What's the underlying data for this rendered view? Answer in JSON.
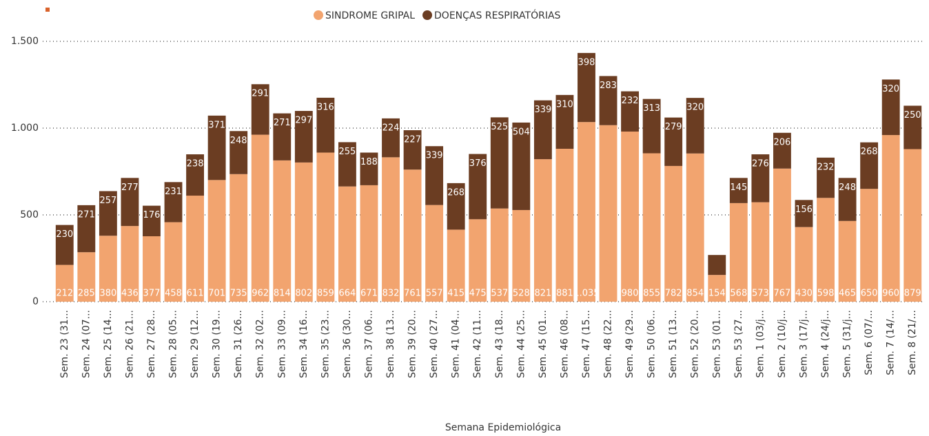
{
  "chart_data": {
    "type": "stacked-bar",
    "x_label": "Semana Epidemiológica",
    "categories": [
      "Sem. 23 (31...",
      "Sem. 24 (07...",
      "Sem. 25 (14...",
      "Sem. 26 (21...",
      "Sem. 27 (28...",
      "Sem. 28 (05...",
      "Sem. 29 (12...",
      "Sem. 30 (19...",
      "Sem. 31 (26...",
      "Sem. 32 (02...",
      "Sem. 33 (09...",
      "Sem. 34 (16...",
      "Sem. 35 (23...",
      "Sem. 36 (30...",
      "Sem. 37 (06...",
      "Sem. 38 (13...",
      "Sem. 39 (20...",
      "Sem. 40 (27...",
      "Sem. 41 (04...",
      "Sem. 42 (11...",
      "Sem. 43 (18...",
      "Sem. 44 (25...",
      "Sem. 45 (01...",
      "Sem. 46 (08...",
      "Sem. 47 (15...",
      "Sem. 48 (22...",
      "Sem. 49 (29...",
      "Sem. 50 (06...",
      "Sem. 51 (13...",
      "Sem. 52 (20...",
      "Sem. 53 (01...",
      "Sem. 53 (27...",
      "Sem. 1 (03/j...",
      "Sem. 2 (10/j...",
      "Sem. 3 (17/j...",
      "Sem. 4 (24/j...",
      "Sem. 5 (31/j...",
      "Sem. 6 (07/...",
      "Sem. 7 (14/...",
      "Sem. 8 (21/..."
    ],
    "series": [
      {
        "name": "SINDROME GRIPAL",
        "color": "#f2a46f",
        "values": [
          212,
          285,
          380,
          436,
          377,
          458,
          611,
          701,
          735,
          962,
          814,
          802,
          859,
          664,
          671,
          832,
          761,
          557,
          415,
          475,
          537,
          528,
          821,
          881,
          1035,
          1017,
          980,
          855,
          782,
          854,
          154,
          568,
          573,
          767,
          430,
          598,
          465,
          650,
          960,
          879
        ],
        "value_labels": [
          "212",
          "285",
          "380",
          "436",
          "377",
          "458",
          "611",
          "701",
          "735",
          "962",
          "814",
          "802",
          "859",
          "664",
          "671",
          "832",
          "761",
          "557",
          "415",
          "475",
          "537",
          "528",
          "821",
          "881",
          "1.035",
          null,
          "980",
          "855",
          "782",
          "854",
          "154",
          "568",
          "573",
          "767",
          "430",
          "598",
          "465",
          "650",
          "960",
          "879"
        ]
      },
      {
        "name": "DOENÇAS RESPIRATÓRIAS",
        "color": "#6b3d22",
        "values": [
          230,
          271,
          257,
          277,
          176,
          231,
          238,
          371,
          248,
          291,
          271,
          297,
          316,
          255,
          188,
          224,
          227,
          339,
          268,
          376,
          525,
          504,
          339,
          310,
          398,
          283,
          232,
          313,
          279,
          320,
          115,
          145,
          276,
          206,
          156,
          232,
          248,
          268,
          320,
          250
        ],
        "value_labels": [
          "230",
          "271",
          "257",
          "277",
          "176",
          "231",
          "238",
          "371",
          "248",
          "291",
          "271",
          "297",
          "316",
          "255",
          "188",
          "224",
          "227",
          "339",
          "268",
          "376",
          "525",
          "504",
          "339",
          "310",
          "398",
          "283",
          "232",
          "313",
          "279",
          "320",
          null,
          "145",
          "276",
          "206",
          "156",
          "232",
          "248",
          "268",
          "320",
          "250"
        ]
      }
    ],
    "ylim": [
      0,
      1500
    ],
    "yticks": [
      0,
      500,
      {
        "value": 1000,
        "label": "1.000"
      },
      {
        "value": 1500,
        "label": "1.500"
      }
    ],
    "grid": true,
    "legend": "top"
  }
}
